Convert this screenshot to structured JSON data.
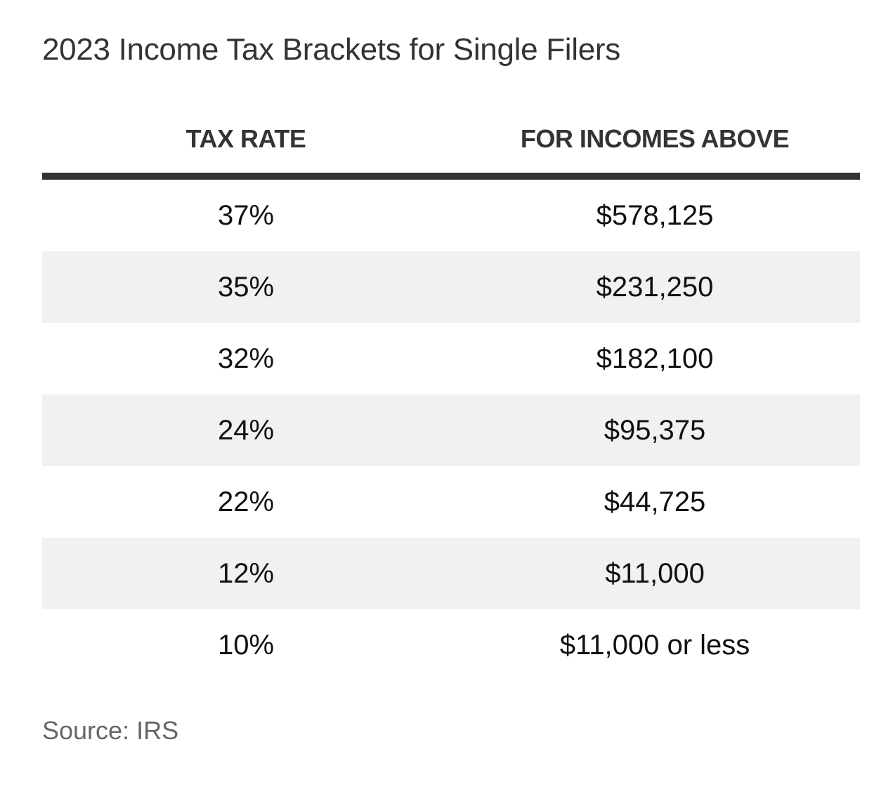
{
  "title": "2023 Income Tax Brackets for Single Filers",
  "source": "Source: IRS",
  "chart_data": {
    "type": "table",
    "title": "2023 Income Tax Brackets for Single Filers",
    "columns": [
      "TAX RATE",
      "FOR INCOMES ABOVE"
    ],
    "rows": [
      [
        "37%",
        "$578,125"
      ],
      [
        "35%",
        "$231,250"
      ],
      [
        "32%",
        "$182,100"
      ],
      [
        "24%",
        "$95,375"
      ],
      [
        "22%",
        "$44,725"
      ],
      [
        "12%",
        "$11,000"
      ],
      [
        "10%",
        "$11,000 or less"
      ]
    ],
    "source": "Source: IRS"
  },
  "colors": {
    "header_rule": "#333333",
    "shaded_row": "#f1f1f1",
    "source_text": "#666666"
  }
}
